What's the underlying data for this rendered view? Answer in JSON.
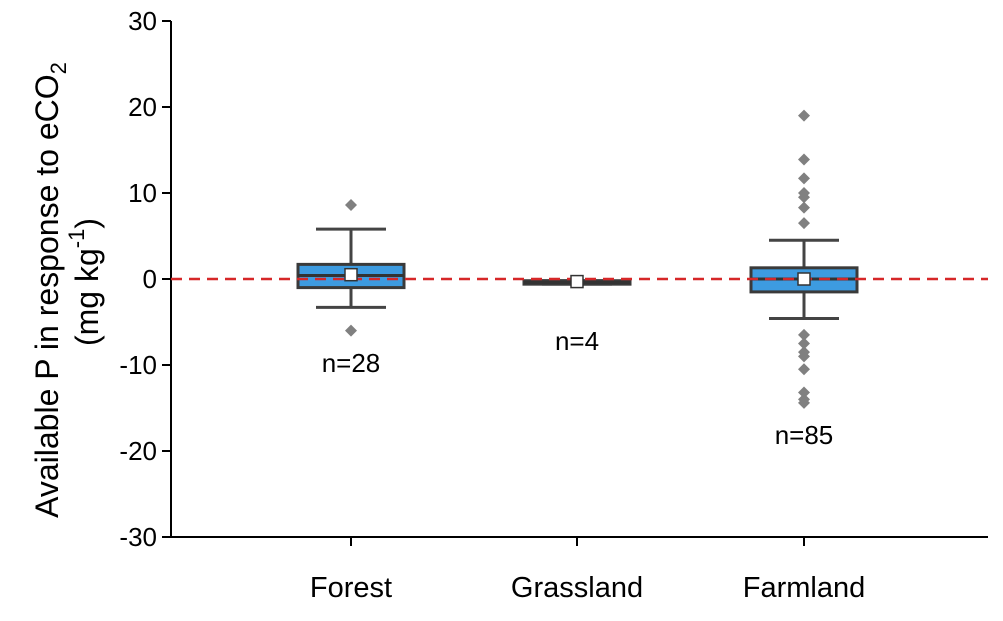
{
  "chart_data": {
    "type": "box",
    "categories": [
      "Forest",
      "Grassland",
      "Farmland"
    ],
    "ylabel": {
      "line1": "Available P in response to eCO",
      "line1_sub": "2",
      "line2_open": "(mg kg",
      "line2_sup": "-1",
      "line2_close": ")"
    },
    "ylim": [
      -30,
      30
    ],
    "yticks": [
      -30,
      -20,
      -10,
      0,
      10,
      20,
      30
    ],
    "yticks_labels": [
      "-30",
      "-20",
      "-10",
      "0",
      "10",
      "20",
      "30"
    ],
    "reference_line": {
      "y": 0,
      "color": "#d62728",
      "style": "dashed"
    },
    "grid": false,
    "box_color": "#3d9be0",
    "outlier_color": "#808080",
    "boxes": [
      {
        "category": "Forest",
        "whisker_low": -3.3,
        "q1": -1.0,
        "median": 0.4,
        "q3": 1.7,
        "whisker_high": 5.8,
        "mean": 0.5,
        "outliers": [
          8.6,
          -6.0
        ],
        "n_label": "n=28"
      },
      {
        "category": "Grassland",
        "whisker_low": -0.6,
        "q1": -0.6,
        "median": -0.4,
        "q3": -0.2,
        "whisker_high": -0.2,
        "mean": -0.3,
        "outliers": [],
        "n_label": "n=4"
      },
      {
        "category": "Farmland",
        "whisker_low": -4.6,
        "q1": -1.5,
        "median": 0.0,
        "q3": 1.3,
        "whisker_high": 4.5,
        "mean": 0.0,
        "outliers": [
          19.0,
          13.9,
          11.7,
          10.0,
          9.5,
          8.3,
          6.5,
          -6.5,
          -7.5,
          -8.5,
          -9.0,
          -10.5,
          -13.2,
          -14.0,
          -14.4
        ],
        "n_label": "n=85"
      }
    ]
  }
}
